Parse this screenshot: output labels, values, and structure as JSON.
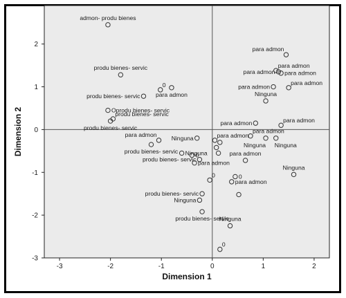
{
  "chart_data": {
    "type": "scatter",
    "title": "",
    "xlabel": "Dimension 1",
    "ylabel": "Dimension 2",
    "xlim": [
      -3.3,
      2.3
    ],
    "ylim": [
      -3.0,
      2.9
    ],
    "xticks": [
      -3,
      -2,
      -1,
      0,
      1,
      2
    ],
    "yticks": [
      -3,
      -2,
      -1,
      0,
      1,
      2
    ],
    "reference_lines": {
      "x": 0,
      "y": 0
    },
    "colors": {
      "plot_bg": "#ebebeb",
      "marker": "#333333",
      "ref_line": "#555555"
    },
    "points": [
      {
        "x": -2.05,
        "y": 2.45,
        "label": "admon- produ  bienes",
        "pos": "above"
      },
      {
        "x": -1.8,
        "y": 1.28,
        "label": "produ bienes- servic",
        "pos": "above"
      },
      {
        "x": -1.02,
        "y": 0.93,
        "label": "0",
        "pos": "right-up"
      },
      {
        "x": -1.35,
        "y": 0.78,
        "label": "produ bienes- servic",
        "pos": "left"
      },
      {
        "x": -0.8,
        "y": 0.98,
        "label": "para admon",
        "pos": "below"
      },
      {
        "x": -2.05,
        "y": 0.45,
        "label": "Oprodu bienes- servic",
        "pos": "right"
      },
      {
        "x": -1.95,
        "y": 0.25,
        "label": "produ bienes- servic",
        "pos": "right-up"
      },
      {
        "x": -2.0,
        "y": 0.2,
        "label": "produ bienes- servic",
        "pos": "below"
      },
      {
        "x": -1.05,
        "y": -0.25,
        "label": "para admon",
        "pos": "left-up"
      },
      {
        "x": -1.2,
        "y": -0.35,
        "label": "produ bienes- servic",
        "pos": "below"
      },
      {
        "x": -0.3,
        "y": -0.2,
        "label": "Ninguna",
        "pos": "left"
      },
      {
        "x": -0.6,
        "y": -0.55,
        "label": "Ninguna",
        "pos": "right"
      },
      {
        "x": -0.4,
        "y": -0.6,
        "label": "0",
        "pos": "right"
      },
      {
        "x": -0.25,
        "y": -0.7,
        "label": "produ bienes- servic",
        "pos": "left"
      },
      {
        "x": 0.05,
        "y": -0.25,
        "label": "para admon",
        "pos": "right-up"
      },
      {
        "x": 0.15,
        "y": -0.3,
        "label": "",
        "pos": "none"
      },
      {
        "x": 0.08,
        "y": -0.42,
        "label": "",
        "pos": "none"
      },
      {
        "x": 0.12,
        "y": -0.55,
        "label": "",
        "pos": "none"
      },
      {
        "x": -0.35,
        "y": -0.78,
        "label": "para admon",
        "pos": "right"
      },
      {
        "x": 0.85,
        "y": 0.15,
        "label": "para admon",
        "pos": "left"
      },
      {
        "x": 0.75,
        "y": -0.15,
        "label": "para admon",
        "pos": "right-up"
      },
      {
        "x": 1.05,
        "y": -0.2,
        "label": "Ninguna",
        "pos": "below-left"
      },
      {
        "x": 1.25,
        "y": -0.2,
        "label": "Ninguna",
        "pos": "below-right"
      },
      {
        "x": 1.35,
        "y": 0.1,
        "label": "para admon",
        "pos": "right-up"
      },
      {
        "x": 0.65,
        "y": -0.72,
        "label": "para admon",
        "pos": "above"
      },
      {
        "x": -0.05,
        "y": -1.18,
        "label": "0",
        "pos": "right-up"
      },
      {
        "x": 0.45,
        "y": -1.1,
        "label": "0",
        "pos": "right"
      },
      {
        "x": 0.38,
        "y": -1.22,
        "label": "para admon",
        "pos": "right"
      },
      {
        "x": 0.52,
        "y": -1.52,
        "label": "",
        "pos": "none"
      },
      {
        "x": 1.6,
        "y": -1.05,
        "label": "Ninguna",
        "pos": "above"
      },
      {
        "x": -0.2,
        "y": -1.5,
        "label": "produ bienes- servic",
        "pos": "left"
      },
      {
        "x": -0.25,
        "y": -1.65,
        "label": "Ninguna",
        "pos": "left"
      },
      {
        "x": -0.2,
        "y": -1.92,
        "label": "produ bienes- servic",
        "pos": "below"
      },
      {
        "x": 0.35,
        "y": -2.25,
        "label": "Ninguna",
        "pos": "above"
      },
      {
        "x": 0.15,
        "y": -2.8,
        "label": "0",
        "pos": "right-up"
      },
      {
        "x": 1.45,
        "y": 1.75,
        "label": "para admon",
        "pos": "left-up"
      },
      {
        "x": 1.25,
        "y": 1.38,
        "label": "para admon",
        "pos": "right-up"
      },
      {
        "x": 1.3,
        "y": 1.35,
        "label": "para admon",
        "pos": "left"
      },
      {
        "x": 1.35,
        "y": 1.32,
        "label": "para admon",
        "pos": "right"
      },
      {
        "x": 1.2,
        "y": 1.0,
        "label": "para admon",
        "pos": "left"
      },
      {
        "x": 1.5,
        "y": 0.98,
        "label": "para admon",
        "pos": "right-up"
      },
      {
        "x": 1.05,
        "y": 0.67,
        "label": "Ninguna",
        "pos": "above"
      }
    ]
  }
}
